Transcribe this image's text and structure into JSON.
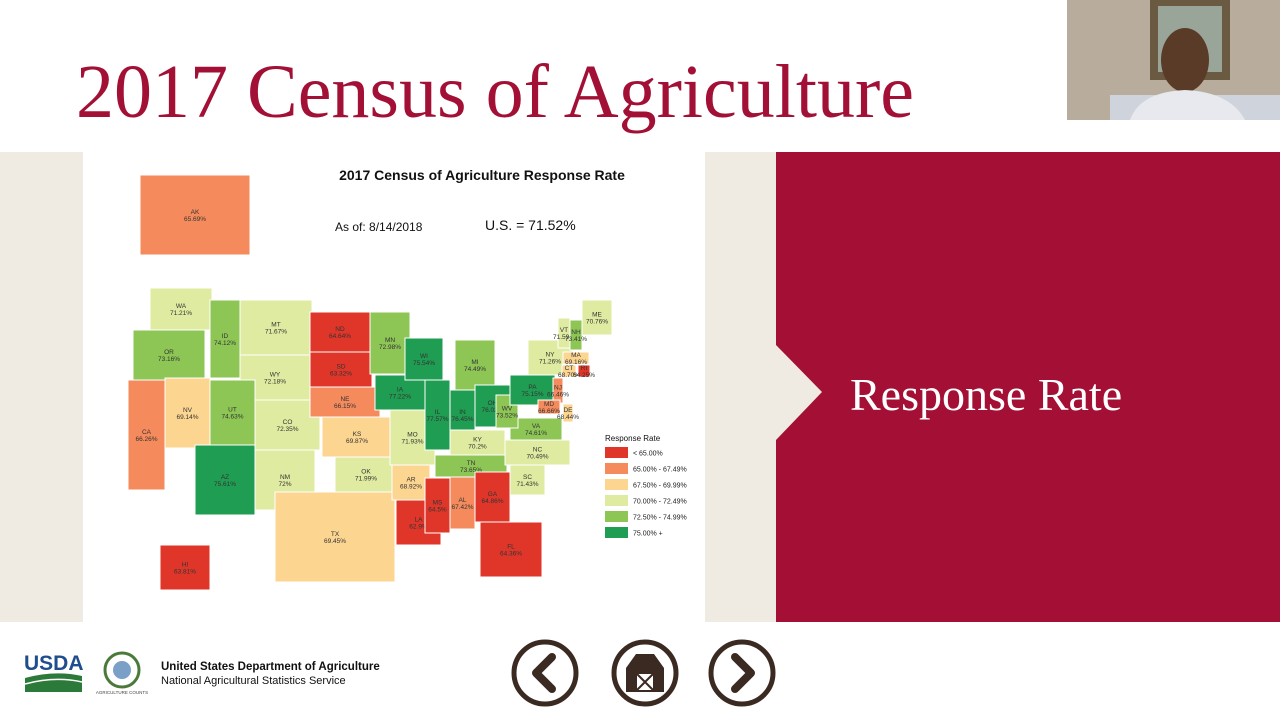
{
  "slide": {
    "title": "2017 Census of Agriculture",
    "panel_text": "Response Rate"
  },
  "map": {
    "title": "2017 Census of Agriculture Response Rate",
    "as_of": "As of: 8/14/2018",
    "us_rate": "U.S. = 71.52%",
    "legend": {
      "title": "Response Rate",
      "items": [
        {
          "label": "< 65.00%",
          "color": "#e0362a"
        },
        {
          "label": "65.00% - 67.49%",
          "color": "#f58b5c"
        },
        {
          "label": "67.50% - 69.99%",
          "color": "#fcd590"
        },
        {
          "label": "70.00% - 72.49%",
          "color": "#dfeba0"
        },
        {
          "label": "72.50% - 74.99%",
          "color": "#8dc655"
        },
        {
          "label": "75.00% +",
          "color": "#1f9d52"
        }
      ]
    },
    "states": [
      {
        "abbr": "AK",
        "rate": "65.69%",
        "color": "#f58b5c"
      },
      {
        "abbr": "HI",
        "rate": "63.81%",
        "color": "#e0362a"
      },
      {
        "abbr": "WA",
        "rate": "71.21%",
        "color": "#dfeba0"
      },
      {
        "abbr": "OR",
        "rate": "73.16%",
        "color": "#8dc655"
      },
      {
        "abbr": "CA",
        "rate": "66.26%",
        "color": "#f58b5c"
      },
      {
        "abbr": "NV",
        "rate": "69.14%",
        "color": "#fcd590"
      },
      {
        "abbr": "ID",
        "rate": "74.12%",
        "color": "#8dc655"
      },
      {
        "abbr": "MT",
        "rate": "71.67%",
        "color": "#dfeba0"
      },
      {
        "abbr": "WY",
        "rate": "72.18%",
        "color": "#dfeba0"
      },
      {
        "abbr": "UT",
        "rate": "74.63%",
        "color": "#8dc655"
      },
      {
        "abbr": "AZ",
        "rate": "75.61%",
        "color": "#1f9d52"
      },
      {
        "abbr": "CO",
        "rate": "72.35%",
        "color": "#dfeba0"
      },
      {
        "abbr": "NM",
        "rate": "72%",
        "color": "#dfeba0"
      },
      {
        "abbr": "ND",
        "rate": "64.64%",
        "color": "#e0362a"
      },
      {
        "abbr": "SD",
        "rate": "63.32%",
        "color": "#e0362a"
      },
      {
        "abbr": "NE",
        "rate": "66.15%",
        "color": "#f58b5c"
      },
      {
        "abbr": "KS",
        "rate": "69.87%",
        "color": "#fcd590"
      },
      {
        "abbr": "OK",
        "rate": "71.99%",
        "color": "#dfeba0"
      },
      {
        "abbr": "TX",
        "rate": "69.45%",
        "color": "#fcd590"
      },
      {
        "abbr": "MN",
        "rate": "72.98%",
        "color": "#8dc655"
      },
      {
        "abbr": "IA",
        "rate": "77.22%",
        "color": "#1f9d52"
      },
      {
        "abbr": "MO",
        "rate": "71.93%",
        "color": "#dfeba0"
      },
      {
        "abbr": "AR",
        "rate": "68.92%",
        "color": "#fcd590"
      },
      {
        "abbr": "LA",
        "rate": "62.9%",
        "color": "#e0362a"
      },
      {
        "abbr": "WI",
        "rate": "75.54%",
        "color": "#1f9d52"
      },
      {
        "abbr": "IL",
        "rate": "77.57%",
        "color": "#1f9d52"
      },
      {
        "abbr": "MS",
        "rate": "64.5%",
        "color": "#e0362a"
      },
      {
        "abbr": "MI",
        "rate": "74.49%",
        "color": "#8dc655"
      },
      {
        "abbr": "IN",
        "rate": "76.45%",
        "color": "#1f9d52"
      },
      {
        "abbr": "OH",
        "rate": "76.02%",
        "color": "#1f9d52"
      },
      {
        "abbr": "KY",
        "rate": "70.2%",
        "color": "#dfeba0"
      },
      {
        "abbr": "TN",
        "rate": "73.65%",
        "color": "#8dc655"
      },
      {
        "abbr": "AL",
        "rate": "67.42%",
        "color": "#f58b5c"
      },
      {
        "abbr": "GA",
        "rate": "64.86%",
        "color": "#e0362a"
      },
      {
        "abbr": "FL",
        "rate": "64.36%",
        "color": "#e0362a"
      },
      {
        "abbr": "SC",
        "rate": "71.43%",
        "color": "#dfeba0"
      },
      {
        "abbr": "NC",
        "rate": "70.49%",
        "color": "#dfeba0"
      },
      {
        "abbr": "VA",
        "rate": "74.61%",
        "color": "#8dc655"
      },
      {
        "abbr": "WV",
        "rate": "73.52%",
        "color": "#8dc655"
      },
      {
        "abbr": "PA",
        "rate": "75.15%",
        "color": "#1f9d52"
      },
      {
        "abbr": "NY",
        "rate": "71.26%",
        "color": "#dfeba0"
      },
      {
        "abbr": "VT",
        "rate": "71.59%",
        "color": "#dfeba0"
      },
      {
        "abbr": "NH",
        "rate": "73.41%",
        "color": "#8dc655"
      },
      {
        "abbr": "ME",
        "rate": "70.76%",
        "color": "#dfeba0"
      },
      {
        "abbr": "MA",
        "rate": "69.16%",
        "color": "#fcd590"
      },
      {
        "abbr": "CT",
        "rate": "68.70%",
        "color": "#fcd590"
      },
      {
        "abbr": "RI",
        "rate": "64.25%",
        "color": "#e0362a"
      },
      {
        "abbr": "NJ",
        "rate": "66.46%",
        "color": "#f58b5c"
      },
      {
        "abbr": "DE",
        "rate": "68.44%",
        "color": "#fcd590"
      },
      {
        "abbr": "MD",
        "rate": "66.66%",
        "color": "#f58b5c"
      }
    ]
  },
  "footer": {
    "usda": "USDA",
    "ag_counts": "AGRICULTURE COUNTS",
    "department": "United States Department of Agriculture",
    "agency": "National Agricultural Statistics Service"
  }
}
